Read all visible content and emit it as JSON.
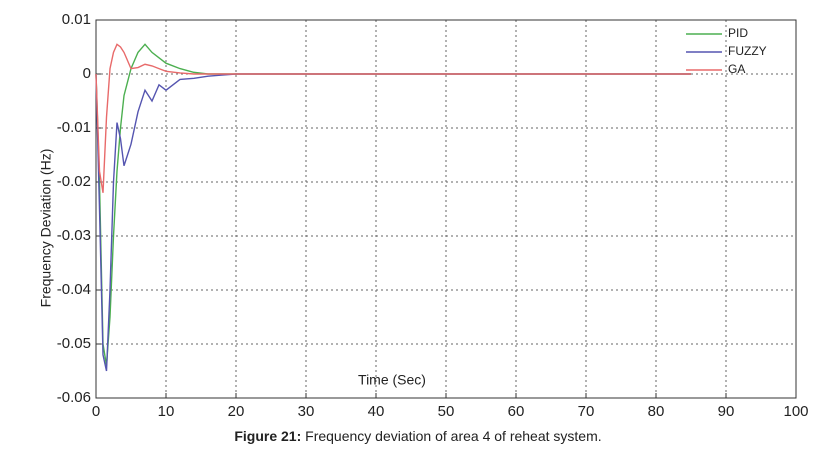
{
  "chart_data": {
    "type": "line",
    "figure_label": "Figure 21:",
    "caption": "Frequency deviation of area 4 of reheat system.",
    "xlabel": "Time (Sec)",
    "ylabel": "Frequency Deviation (Hz)",
    "x": [
      0,
      0.5,
      1,
      1.5,
      2,
      2.5,
      3,
      3.5,
      4,
      5,
      6,
      7,
      8,
      9,
      10,
      12,
      14,
      16,
      18,
      20,
      30,
      40,
      50,
      60,
      70,
      80,
      85
    ],
    "series": [
      {
        "name": "PID",
        "color": "#4caf50",
        "values": [
          0,
          -0.02,
          -0.05,
          -0.054,
          -0.045,
          -0.03,
          -0.018,
          -0.01,
          -0.004,
          0.001,
          0.004,
          0.0055,
          0.004,
          0.003,
          0.002,
          0.001,
          0.0003,
          0,
          0,
          0,
          0,
          0,
          0,
          0,
          0,
          0,
          0
        ]
      },
      {
        "name": "FUZZY",
        "color": "#5555b0",
        "values": [
          0,
          -0.025,
          -0.052,
          -0.055,
          -0.04,
          -0.02,
          -0.009,
          -0.012,
          -0.017,
          -0.013,
          -0.007,
          -0.003,
          -0.005,
          -0.002,
          -0.003,
          -0.001,
          -0.0008,
          -0.0004,
          -0.0002,
          0,
          0,
          0,
          0,
          0,
          0,
          0,
          0
        ]
      },
      {
        "name": "GA",
        "color": "#e86a6a",
        "values": [
          0,
          -0.018,
          -0.022,
          -0.008,
          0.001,
          0.004,
          0.0055,
          0.005,
          0.004,
          0.001,
          0.0012,
          0.0018,
          0.0015,
          0.001,
          0.0005,
          0.0002,
          0,
          0,
          0,
          0,
          0,
          0,
          0,
          0,
          0,
          0,
          0
        ]
      }
    ],
    "xlim": [
      0,
      100
    ],
    "xticks": [
      0,
      10,
      20,
      30,
      40,
      50,
      60,
      70,
      80,
      90,
      100
    ],
    "ylim": [
      -0.06,
      0.01
    ],
    "yticks": [
      0.01,
      0,
      -0.01,
      -0.02,
      -0.03,
      -0.04,
      -0.05,
      -0.06
    ],
    "grid": true,
    "legend": "upper right"
  }
}
